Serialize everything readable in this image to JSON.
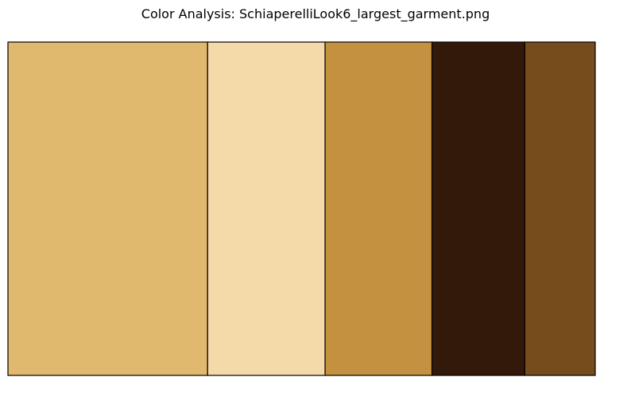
{
  "chart_data": {
    "type": "bar",
    "title": "Color Analysis: SchiaperelliLook6_largest_garment.png",
    "xlabel": "",
    "ylabel": "",
    "grid": false,
    "axes_visible": false,
    "colors": [
      "#E1B96E",
      "#F4DAA9",
      "#C39140",
      "#32190A",
      "#774C1D"
    ],
    "values": [
      34.0,
      20.0,
      18.2,
      15.8,
      12.0
    ]
  }
}
